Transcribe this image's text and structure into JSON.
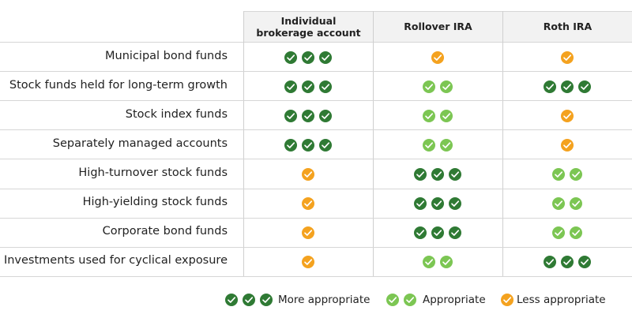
{
  "table": {
    "columns": [
      "Individual brokerage account",
      "Rollover IRA",
      "Roth IRA"
    ],
    "rows": [
      {
        "label": "Municipal bond funds",
        "ratings": [
          3,
          1,
          1
        ]
      },
      {
        "label": "Stock funds held for long-term growth",
        "ratings": [
          3,
          2,
          3
        ]
      },
      {
        "label": "Stock index funds",
        "ratings": [
          3,
          2,
          1
        ]
      },
      {
        "label": "Separately managed accounts",
        "ratings": [
          3,
          2,
          1
        ]
      },
      {
        "label": "High-turnover stock funds",
        "ratings": [
          1,
          3,
          2
        ]
      },
      {
        "label": "High-yielding stock funds",
        "ratings": [
          1,
          3,
          2
        ]
      },
      {
        "label": "Corporate bond funds",
        "ratings": [
          1,
          3,
          2
        ]
      },
      {
        "label": "Investments used for cyclical exposure",
        "ratings": [
          1,
          2,
          3
        ]
      }
    ]
  },
  "legend": [
    {
      "level": 3,
      "label": "More appropriate",
      "color": "#2f7a34"
    },
    {
      "level": 2,
      "label": "Appropriate",
      "color": "#7cc653"
    },
    {
      "level": 1,
      "label": "Less appropriate",
      "color": "#f4a21f"
    }
  ]
}
